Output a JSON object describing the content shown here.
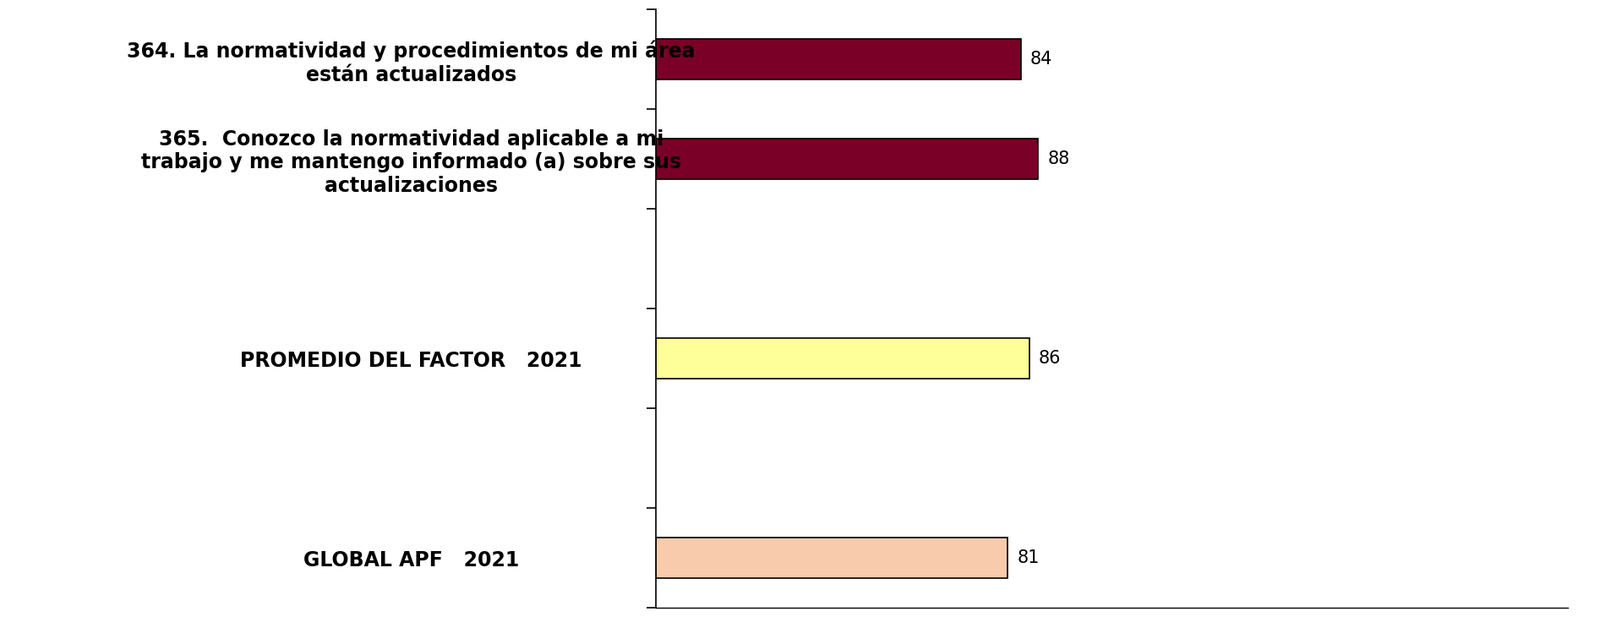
{
  "chart_data": {
    "type": "bar",
    "orientation": "horizontal",
    "categories": [
      "364. La normatividad y procedimientos de mi área están actualizados",
      "365.  Conozco la normatividad aplicable a mi trabajo y me mantengo informado (a) sobre sus actualizaciones",
      null,
      "PROMEDIO DEL FACTOR   2021",
      null,
      "GLOBAL APF   2021"
    ],
    "values": [
      84,
      88,
      null,
      86,
      null,
      81
    ],
    "colors": [
      "#7B0028",
      "#7B0028",
      null,
      "#FFFF99",
      null,
      "#F8CBAD"
    ],
    "xlim": [
      0,
      210
    ],
    "data_labels": true,
    "tick_labels": "y",
    "grid": false
  }
}
